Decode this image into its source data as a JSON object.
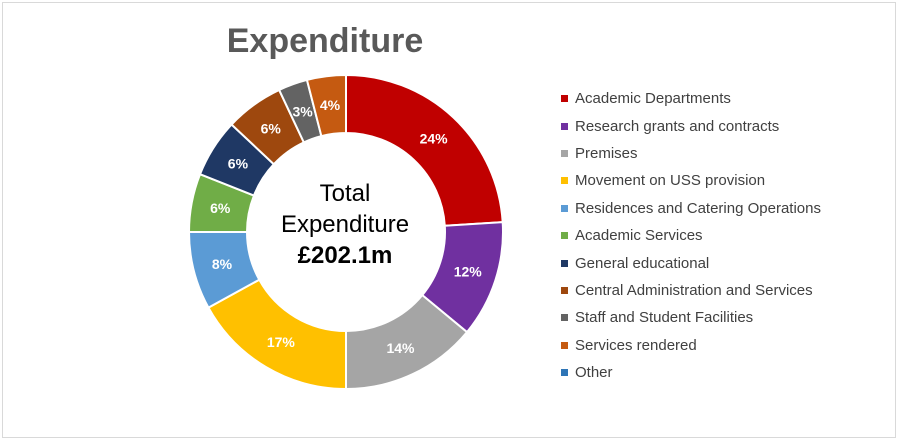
{
  "chart_data": {
    "type": "pie",
    "title": "Expenditure",
    "center_label": {
      "line1": "Total",
      "line2": "Expenditure",
      "value": "£202.1m"
    },
    "slices": [
      {
        "name": "Academic Departments",
        "value": 24,
        "label": "24%",
        "color": "#c00000"
      },
      {
        "name": "Research grants and contracts",
        "value": 12,
        "label": "12%",
        "color": "#7030a0"
      },
      {
        "name": "Premises",
        "value": 14,
        "label": "14%",
        "color": "#a5a5a5"
      },
      {
        "name": "Movement on USS provision",
        "value": 17,
        "label": "17%",
        "color": "#ffc000"
      },
      {
        "name": "Residences and Catering Operations",
        "value": 8,
        "label": "8%",
        "color": "#5b9bd5"
      },
      {
        "name": "Academic Services",
        "value": 6,
        "label": "6%",
        "color": "#70ad47"
      },
      {
        "name": "General educational",
        "value": 6,
        "label": "6%",
        "color": "#1f3864"
      },
      {
        "name": "Central Administration and Services",
        "value": 6,
        "label": "6%",
        "color": "#9e480e"
      },
      {
        "name": "Staff and Student Facilities",
        "value": 3,
        "label": "3%",
        "color": "#636363"
      },
      {
        "name": "Services rendered",
        "value": 4,
        "label": "4%",
        "color": "#c55a11"
      },
      {
        "name": "Other",
        "value": 0,
        "label": "0%",
        "color": "#2e75b6"
      }
    ],
    "legend_position": "right"
  }
}
